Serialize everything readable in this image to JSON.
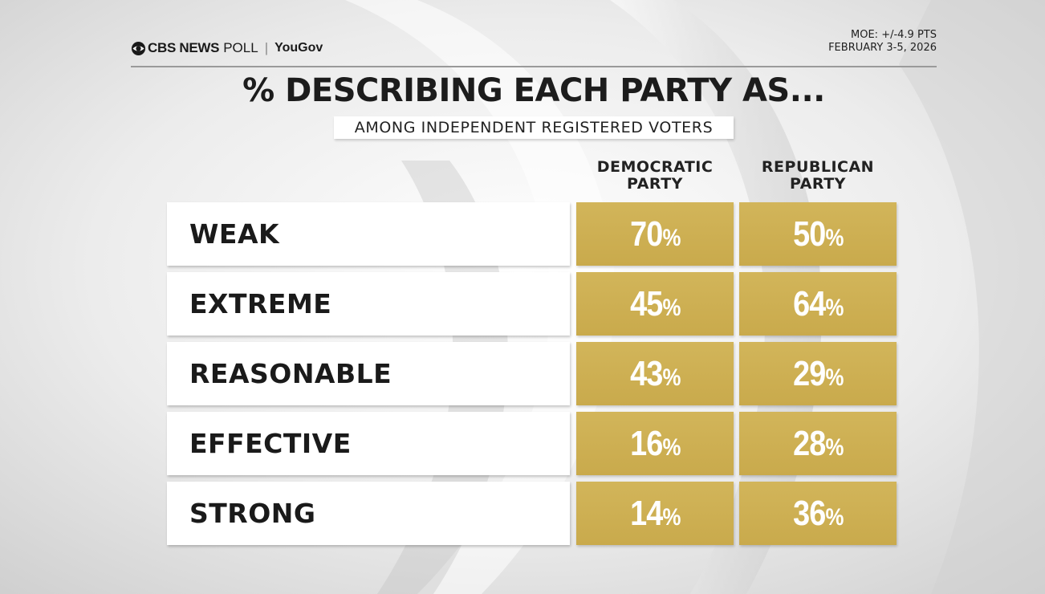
{
  "header": {
    "brand": {
      "cbs": "CBS NEWS",
      "poll": "POLL",
      "separator": "|",
      "partner": "YouGov"
    },
    "moe": "MOE: +/-4.9 PTS",
    "date": "FEBRUARY 3-5, 2026"
  },
  "colors": {
    "gold": "#c9aa4c",
    "white": "#ffffff",
    "text": "#1a1a1a"
  },
  "chart_data": {
    "type": "table",
    "title": "% DESCRIBING EACH PARTY AS...",
    "subtitle": "AMONG INDEPENDENT REGISTERED VOTERS",
    "columns": [
      {
        "line1": "DEMOCRATIC",
        "line2": "PARTY"
      },
      {
        "line1": "REPUBLICAN",
        "line2": "PARTY"
      }
    ],
    "rows": [
      {
        "label": "WEAK",
        "values": [
          70,
          50
        ]
      },
      {
        "label": "EXTREME",
        "values": [
          45,
          64
        ]
      },
      {
        "label": "REASONABLE",
        "values": [
          43,
          29
        ]
      },
      {
        "label": "EFFECTIVE",
        "values": [
          16,
          28
        ]
      },
      {
        "label": "STRONG",
        "values": [
          14,
          36
        ]
      }
    ],
    "unit": "%"
  }
}
